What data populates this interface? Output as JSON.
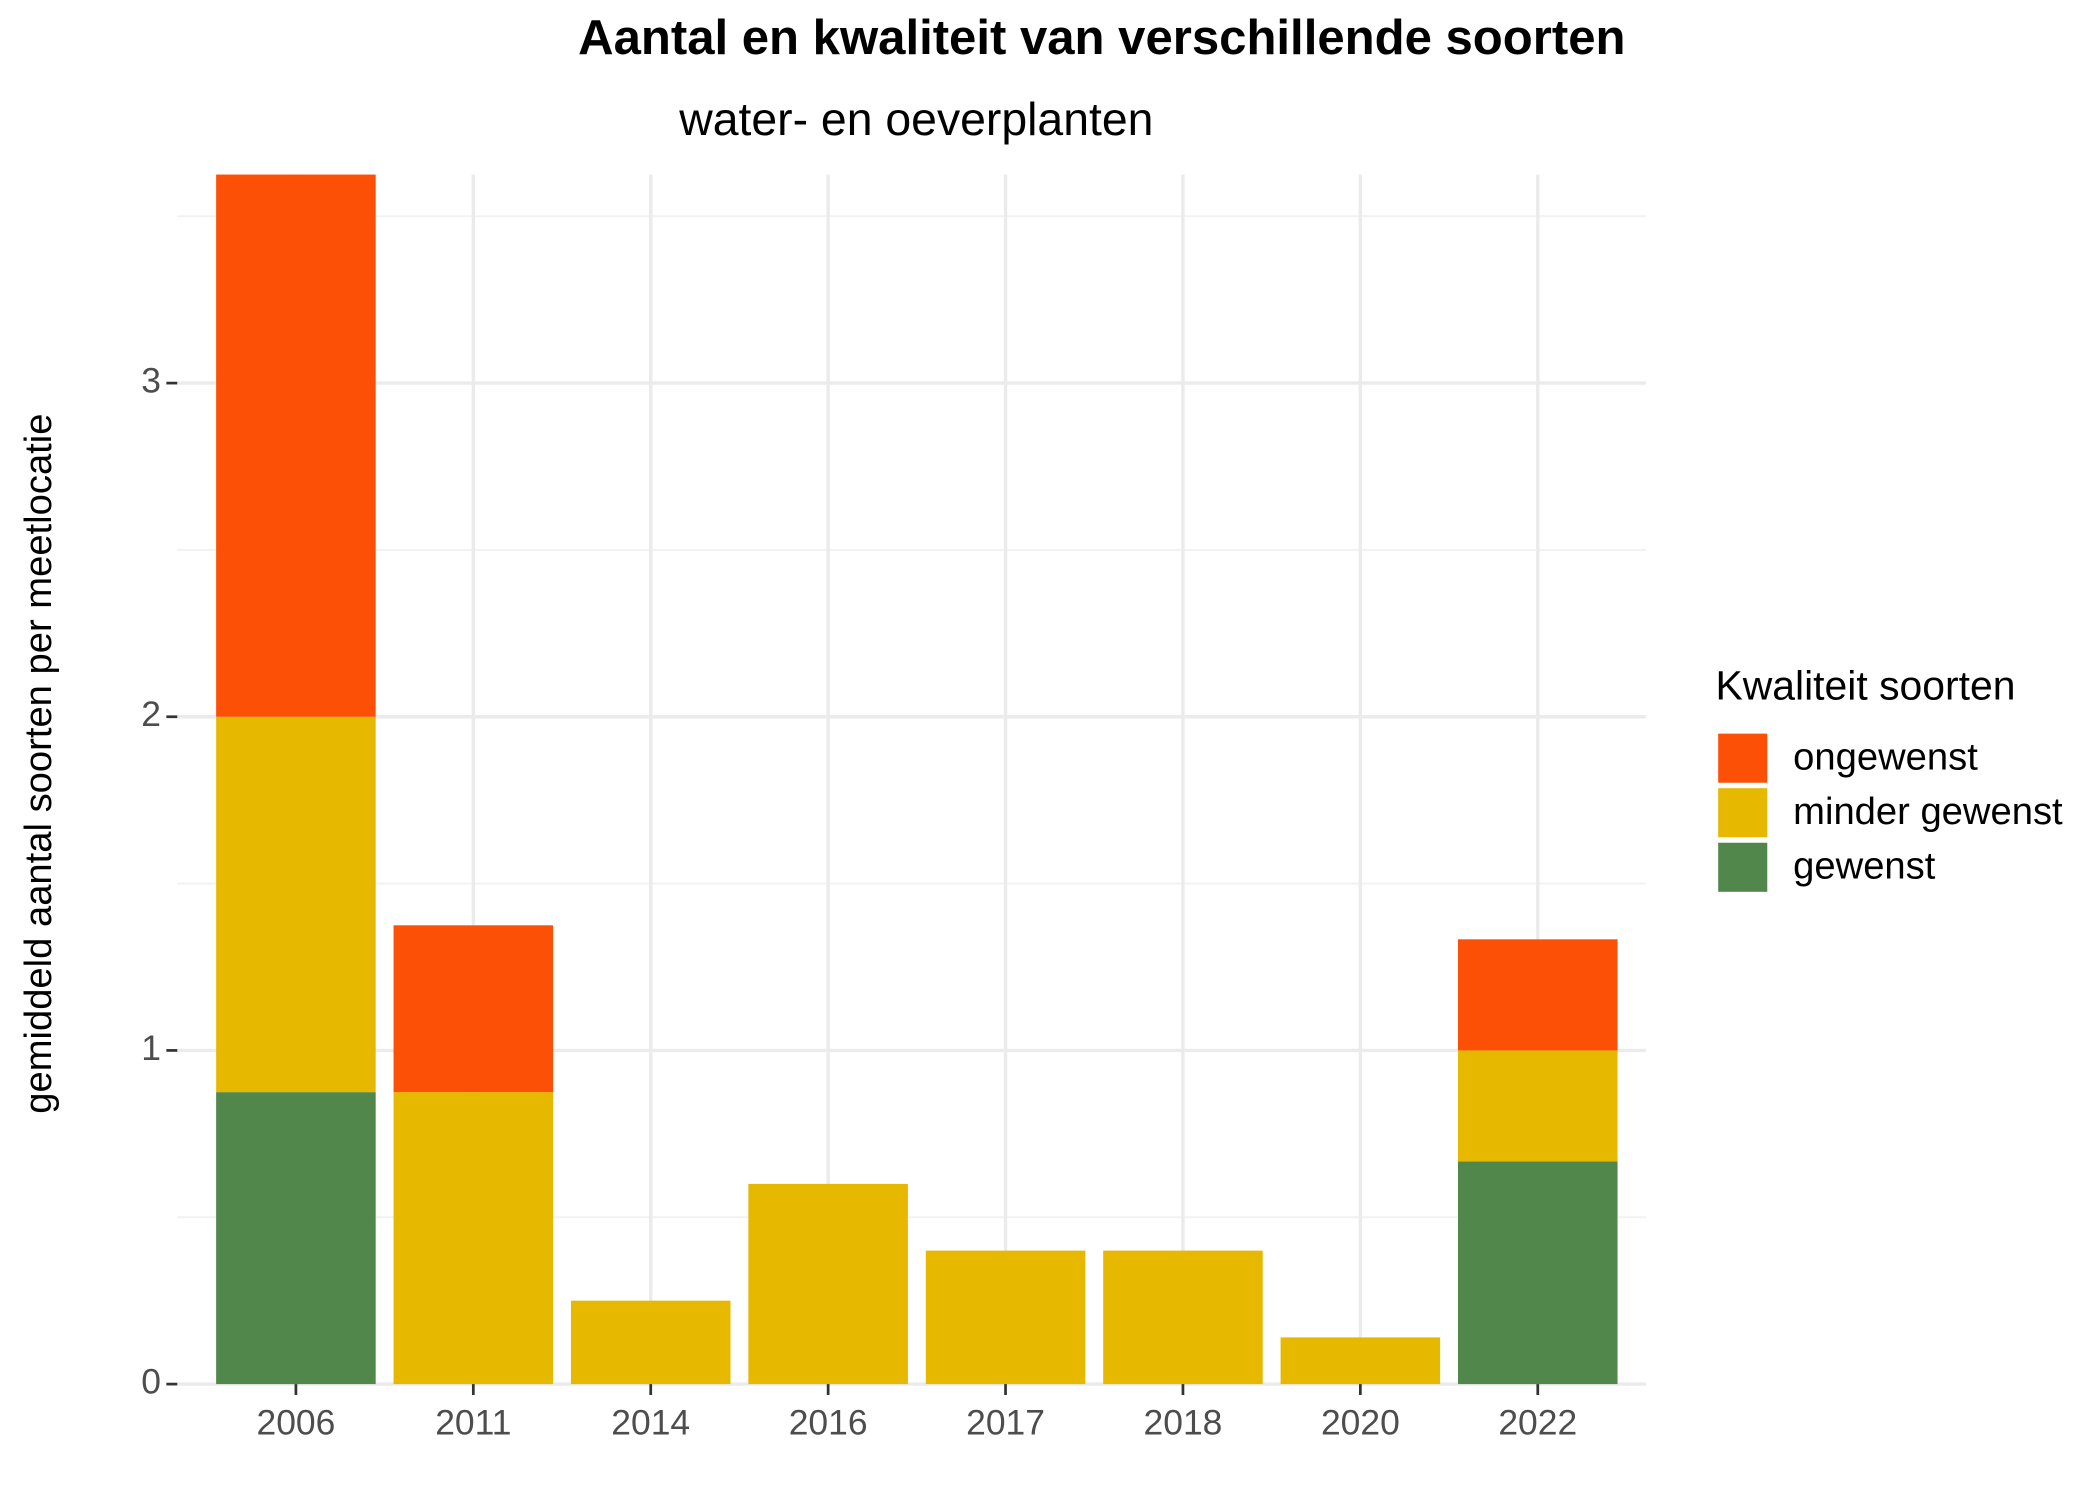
{
  "chart_data": {
    "type": "stacked_bar",
    "title": "Aantal en kwaliteit van verschillende soorten",
    "subtitle": "water- en oeverplanten",
    "y_label": "gemiddeld aantal soorten per meetlocatie",
    "legend_title": "Kwaliteit soorten",
    "legend": "right",
    "grid": true,
    "categories": [
      "2006",
      "2011",
      "2014",
      "2016",
      "2017",
      "2018",
      "2020",
      "2022"
    ],
    "series": [
      {
        "name": "ongewenst",
        "color": "#fc5007",
        "values": [
          1.625,
          0.5,
          null,
          null,
          null,
          null,
          null,
          0.333
        ]
      },
      {
        "name": "minder gewenst",
        "color": "#e6b900",
        "values": [
          1.125,
          0.875,
          0.25,
          0.6,
          0.4,
          0.4,
          0.14,
          0.333
        ]
      },
      {
        "name": "gewenst",
        "color": "#52874b",
        "values": [
          0.875,
          null,
          null,
          null,
          null,
          null,
          null,
          0.667
        ]
      }
    ],
    "ylim": [
      0,
      3.625
    ],
    "yticks": [
      0,
      1,
      2,
      3
    ]
  }
}
